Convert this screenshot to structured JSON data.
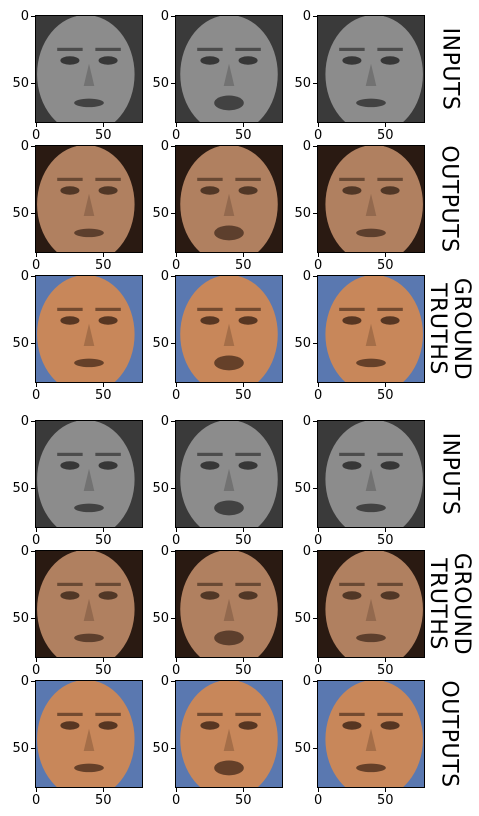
{
  "axis_ticks": {
    "y": [
      "0",
      "50"
    ],
    "x": [
      "0",
      "50"
    ]
  },
  "rows": [
    {
      "label": "INPUTS",
      "tone": "gray"
    },
    {
      "label": "OUTPUTS",
      "tone": "color"
    },
    {
      "label": "GROUND\nTRUTHS",
      "tone": "vivid"
    },
    {
      "label": "INPUTS",
      "tone": "gray"
    },
    {
      "label": "GROUND\nTRUTHS",
      "tone": "color"
    },
    {
      "label": "OUTPUTS",
      "tone": "vivid"
    }
  ],
  "face_colors": {
    "gray_skin": "#8c8c8c",
    "gray_bg": "#3a3a3a",
    "skin": "#b08060",
    "bg_dark": "#2a1a12",
    "vivid_skin": "#c8875a",
    "vivid_bg": "#5a78b0"
  }
}
